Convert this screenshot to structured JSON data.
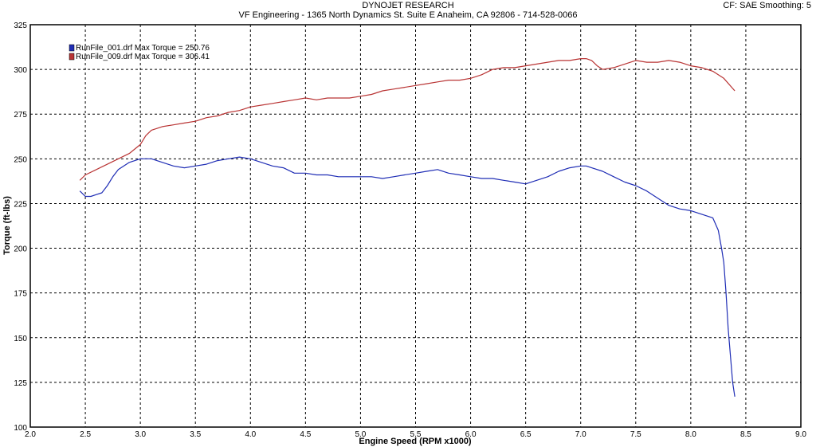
{
  "header": {
    "title": "DYNOJET RESEARCH",
    "subtitle": "VF Engineering - 1365 North Dynamics St. Suite E Anaheim, CA 92806 - 714-528-0066",
    "cf_info": "CF: SAE  Smoothing: 5"
  },
  "chart_data": {
    "type": "line",
    "xlabel": "Engine Speed (RPM x1000)",
    "ylabel": "Torque (ft-lbs)",
    "xlim": [
      2.0,
      9.0
    ],
    "ylim": [
      100,
      325
    ],
    "xticks": [
      "2.0",
      "2.5",
      "3.0",
      "3.5",
      "4.0",
      "4.5",
      "5.0",
      "5.5",
      "6.0",
      "6.5",
      "7.0",
      "7.5",
      "8.0",
      "8.5",
      "9.0"
    ],
    "yticks": [
      "100",
      "125",
      "150",
      "175",
      "200",
      "225",
      "250",
      "275",
      "300",
      "325"
    ],
    "grid": true,
    "legend_position": "top-left",
    "series": [
      {
        "name": "RunFile_001.drf Max Torque = 250.76",
        "color": "#1f2db5",
        "x": [
          2.45,
          2.5,
          2.55,
          2.6,
          2.65,
          2.7,
          2.75,
          2.8,
          2.9,
          3.0,
          3.05,
          3.1,
          3.15,
          3.2,
          3.3,
          3.4,
          3.5,
          3.6,
          3.7,
          3.8,
          3.9,
          4.0,
          4.1,
          4.2,
          4.3,
          4.4,
          4.5,
          4.6,
          4.7,
          4.8,
          4.9,
          5.0,
          5.1,
          5.2,
          5.3,
          5.4,
          5.5,
          5.6,
          5.7,
          5.8,
          5.9,
          6.0,
          6.1,
          6.2,
          6.3,
          6.4,
          6.5,
          6.6,
          6.7,
          6.8,
          6.9,
          7.0,
          7.05,
          7.1,
          7.2,
          7.3,
          7.4,
          7.5,
          7.6,
          7.7,
          7.8,
          7.9,
          8.0,
          8.1,
          8.15,
          8.2,
          8.25,
          8.28,
          8.3,
          8.32,
          8.34,
          8.36,
          8.38,
          8.4
        ],
        "y": [
          232,
          229,
          229,
          230,
          231,
          235,
          240,
          244,
          248,
          250,
          250,
          250,
          249,
          248,
          246,
          245,
          246,
          247,
          249,
          250,
          251,
          250,
          248,
          246,
          245,
          242,
          242,
          241,
          241,
          240,
          240,
          240,
          240,
          239,
          240,
          241,
          242,
          243,
          244,
          242,
          241,
          240,
          239,
          239,
          238,
          237,
          236,
          238,
          240,
          243,
          245,
          246,
          246,
          245,
          243,
          240,
          237,
          235,
          232,
          228,
          224,
          222,
          221,
          219,
          218,
          217,
          210,
          200,
          192,
          175,
          155,
          140,
          125,
          117
        ]
      },
      {
        "name": "RunFile_009.drf Max Torque = 306.41",
        "color": "#b93434",
        "x": [
          2.45,
          2.5,
          2.6,
          2.7,
          2.8,
          2.9,
          3.0,
          3.05,
          3.1,
          3.2,
          3.3,
          3.4,
          3.5,
          3.6,
          3.7,
          3.8,
          3.9,
          4.0,
          4.1,
          4.2,
          4.3,
          4.4,
          4.5,
          4.6,
          4.7,
          4.8,
          4.9,
          5.0,
          5.1,
          5.2,
          5.3,
          5.4,
          5.5,
          5.6,
          5.7,
          5.8,
          5.9,
          6.0,
          6.05,
          6.1,
          6.2,
          6.3,
          6.4,
          6.5,
          6.6,
          6.7,
          6.8,
          6.9,
          7.0,
          7.05,
          7.1,
          7.15,
          7.2,
          7.3,
          7.4,
          7.5,
          7.6,
          7.7,
          7.8,
          7.9,
          8.0,
          8.1,
          8.2,
          8.3,
          8.4
        ],
        "y": [
          238,
          241,
          244,
          247,
          250,
          253,
          258,
          263,
          266,
          268,
          269,
          270,
          271,
          273,
          274,
          276,
          277,
          279,
          280,
          281,
          282,
          283,
          284,
          283,
          284,
          284,
          284,
          285,
          286,
          288,
          289,
          290,
          291,
          292,
          293,
          294,
          294,
          295,
          296,
          297,
          300,
          301,
          301,
          302,
          303,
          304,
          305,
          305,
          306,
          306,
          305,
          302,
          300,
          301,
          303,
          305,
          304,
          304,
          305,
          304,
          302,
          301,
          299,
          295,
          288
        ]
      }
    ]
  }
}
